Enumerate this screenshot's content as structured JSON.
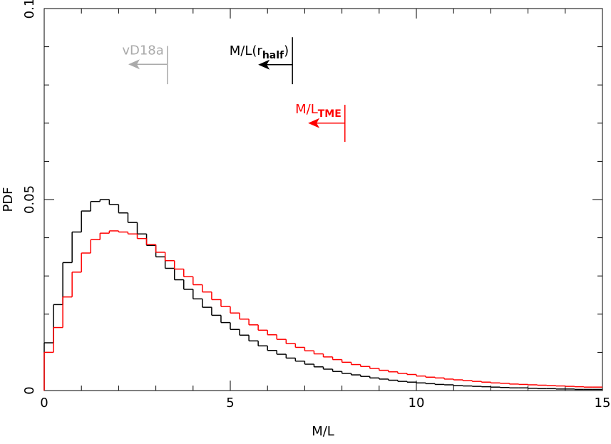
{
  "chart_data": {
    "type": "histogram",
    "xlabel": "M/L",
    "ylabel": "PDF",
    "bins": [
      0,
      0.25,
      0.5,
      0.75,
      1,
      1.25,
      1.5,
      1.75,
      2,
      2.25,
      2.5,
      2.75,
      3,
      3.25,
      3.5,
      3.75,
      4,
      4.25,
      4.5,
      4.75,
      5,
      5.25,
      5.5,
      5.75,
      6,
      6.25,
      6.5,
      6.75,
      7,
      7.25,
      7.5,
      7.75,
      8,
      8.25,
      8.5,
      8.75,
      9,
      9.25,
      9.5,
      9.75,
      10,
      10.25,
      10.5,
      10.75,
      11,
      11.25,
      11.5,
      11.75,
      12,
      12.25,
      12.5,
      12.75,
      13,
      13.25,
      13.5,
      13.75,
      14,
      14.25,
      14.5,
      14.75,
      15
    ],
    "series": [
      {
        "color": "#000000",
        "values": [
          0.0125,
          0.0225,
          0.0335,
          0.0415,
          0.047,
          0.0495,
          0.05,
          0.0487,
          0.0465,
          0.044,
          0.041,
          0.038,
          0.035,
          0.032,
          0.029,
          0.0265,
          0.024,
          0.0218,
          0.0197,
          0.0178,
          0.016,
          0.0145,
          0.013,
          0.0117,
          0.0105,
          0.0095,
          0.0085,
          0.0077,
          0.0069,
          0.0062,
          0.0056,
          0.005,
          0.0045,
          0.0041,
          0.0037,
          0.0033,
          0.003,
          0.0027,
          0.0024,
          0.0022,
          0.002,
          0.0018,
          0.0016,
          0.0015,
          0.0013,
          0.0012,
          0.0011,
          0.001,
          0.0009,
          0.0008,
          0.0007,
          0.0007,
          0.0006,
          0.0005,
          0.0005,
          0.0004,
          0.0004,
          0.0003,
          0.0003,
          0.0003
        ]
      },
      {
        "color": "#ff0000",
        "values": [
          0.01,
          0.0165,
          0.0245,
          0.031,
          0.036,
          0.0395,
          0.0412,
          0.0418,
          0.0415,
          0.041,
          0.0398,
          0.0382,
          0.0362,
          0.034,
          0.0318,
          0.0298,
          0.0277,
          0.0258,
          0.0238,
          0.022,
          0.0203,
          0.0187,
          0.0172,
          0.0158,
          0.0146,
          0.0134,
          0.0123,
          0.0113,
          0.0104,
          0.0096,
          0.0088,
          0.0081,
          0.0074,
          0.0068,
          0.0063,
          0.0058,
          0.0053,
          0.0049,
          0.0045,
          0.0042,
          0.0038,
          0.0035,
          0.0033,
          0.003,
          0.0028,
          0.0026,
          0.0024,
          0.0022,
          0.002,
          0.0019,
          0.0017,
          0.0016,
          0.0015,
          0.0014,
          0.0013,
          0.0012,
          0.0011,
          0.001,
          0.0009,
          0.0009
        ]
      }
    ],
    "xlim": [
      0,
      15
    ],
    "xticks": [
      0,
      5,
      10,
      15
    ],
    "xminorticks": [
      1,
      2,
      3,
      4,
      6,
      7,
      8,
      9,
      11,
      12,
      13,
      14
    ],
    "ylim": [
      0,
      0.1
    ],
    "yticks": [
      0,
      0.05,
      0.1
    ],
    "yminorticks": [
      0.01,
      0.02,
      0.03,
      0.04,
      0.06,
      0.07,
      0.08,
      0.09
    ],
    "annotations": [
      {
        "text": "vD18a",
        "color": "#aaaaaa",
        "x": 3.31,
        "y_range": [
          0.0802,
          0.0902
        ],
        "arrow_to": 2.26,
        "arrow_y": 0.0854
      },
      {
        "text": "M/L(r",
        "sub": "half",
        "after": ")",
        "color": "#000000",
        "x": 6.67,
        "y_range": [
          0.0802,
          0.0925
        ],
        "arrow_to": 5.75,
        "arrow_y": 0.0853
      },
      {
        "text": "M/L",
        "sub": "TME",
        "color": "#ff0000",
        "x": 8.08,
        "y_range": [
          0.0651,
          0.0748
        ],
        "arrow_to": 7.09,
        "arrow_y": 0.07
      }
    ]
  }
}
